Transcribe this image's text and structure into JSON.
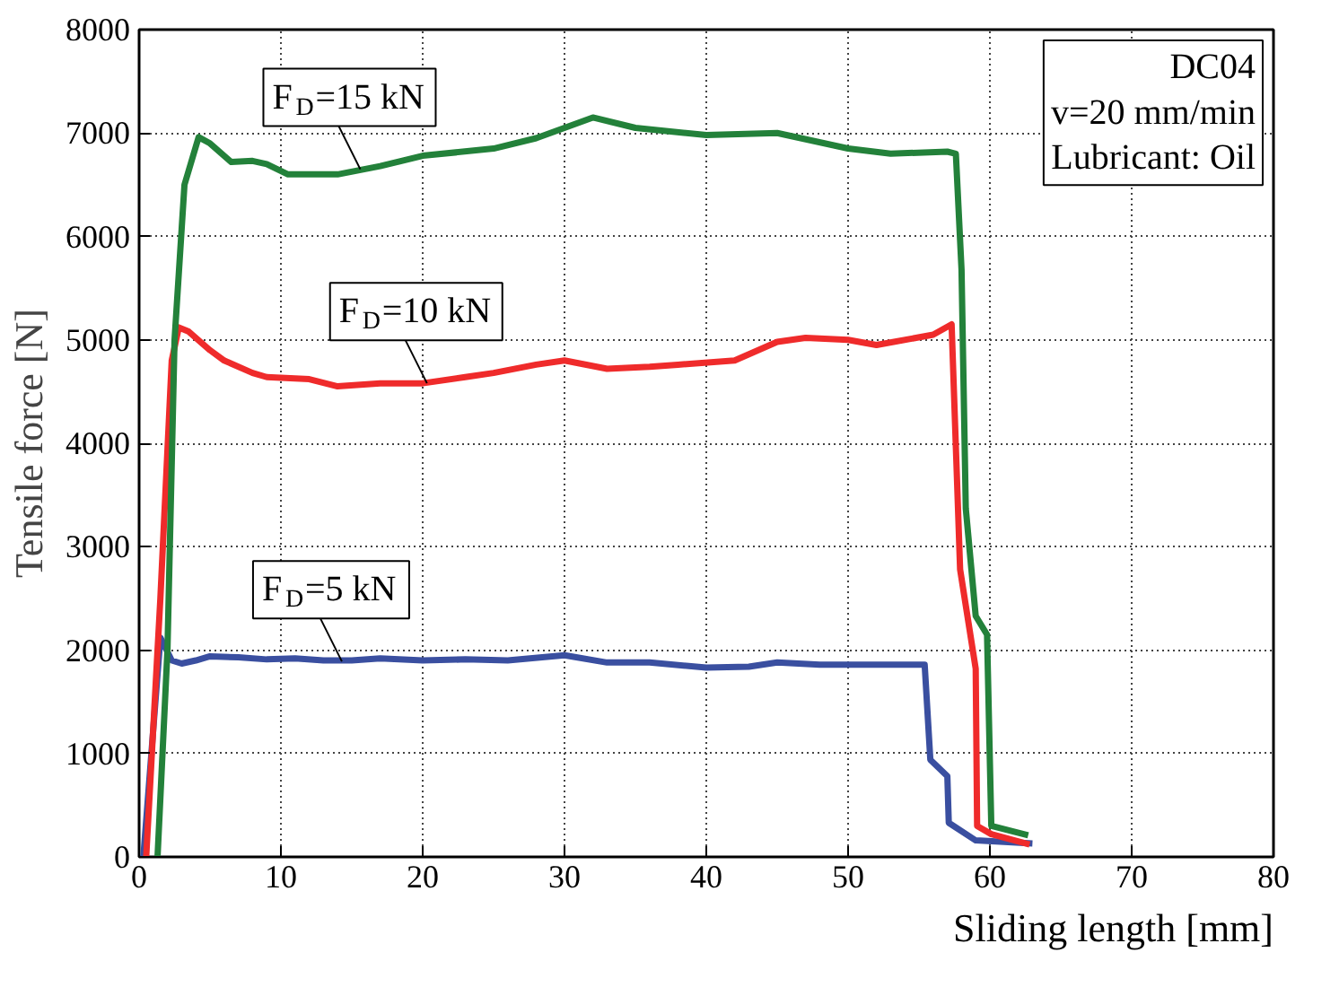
{
  "chart_data": {
    "type": "line",
    "xlabel": "Sliding length [mm]",
    "ylabel": "Tensile force [N]",
    "xlim": [
      0,
      80
    ],
    "ylim": [
      0,
      8000
    ],
    "xticks": [
      0,
      10,
      20,
      30,
      40,
      50,
      60,
      70,
      80
    ],
    "yticks": [
      0,
      1000,
      2000,
      3000,
      4000,
      5000,
      6000,
      7000,
      8000
    ],
    "grid": true,
    "line_style": "solid",
    "series": [
      {
        "color": "#3a4fa0",
        "x": [
          0.3,
          1.5,
          2.3,
          3,
          4,
          5,
          7,
          9,
          11,
          13,
          15,
          17,
          20,
          23,
          26,
          30,
          33,
          36,
          40,
          43,
          45,
          48,
          51,
          53,
          55.4,
          55.8,
          57.0,
          57.1,
          59,
          63
        ],
        "values": [
          0,
          2120,
          1900,
          1870,
          1900,
          1940,
          1930,
          1910,
          1920,
          1900,
          1900,
          1920,
          1900,
          1910,
          1900,
          1950,
          1880,
          1880,
          1830,
          1840,
          1880,
          1860,
          1860,
          1860,
          1860,
          940,
          780,
          330,
          160,
          130
        ]
      },
      {
        "color": "#ef2b2b",
        "x": [
          0.5,
          1.5,
          2.3,
          2.8,
          3.5,
          5,
          6,
          8,
          9,
          12,
          14,
          17,
          20,
          23,
          25,
          28,
          30,
          33,
          36,
          38,
          42,
          45,
          47,
          50,
          52,
          56,
          57.3,
          57.9,
          59.0,
          59.1,
          60.1,
          62.8
        ],
        "values": [
          0,
          2500,
          4800,
          5120,
          5080,
          4900,
          4800,
          4680,
          4640,
          4620,
          4550,
          4580,
          4580,
          4640,
          4680,
          4760,
          4800,
          4720,
          4740,
          4760,
          4800,
          4980,
          5020,
          5000,
          4950,
          5050,
          5150,
          2780,
          1820,
          300,
          220,
          120
        ]
      },
      {
        "color": "#23813a",
        "x": [
          1.3,
          2,
          2.5,
          3.2,
          4.2,
          5,
          6.5,
          8,
          9,
          10.5,
          14,
          17,
          20,
          25,
          28,
          30,
          32,
          35,
          40,
          45,
          50,
          53,
          57,
          57.6,
          58.0,
          58.3,
          59.0,
          59.8,
          60.1,
          62.7
        ],
        "values": [
          0,
          2000,
          5000,
          6500,
          6960,
          6900,
          6720,
          6730,
          6700,
          6600,
          6600,
          6680,
          6780,
          6850,
          6950,
          7050,
          7150,
          7050,
          6980,
          7000,
          6850,
          6800,
          6820,
          6800,
          5680,
          3370,
          2330,
          2150,
          300,
          210
        ]
      }
    ],
    "annotations": [
      {
        "text": "F$_{D}$=15 kN",
        "x": 15.6,
        "y": 6650
      },
      {
        "text": "F$_{D}$=10 kN",
        "x": 20.3,
        "y": 4580
      },
      {
        "text": "F$_{D}$=5 kN",
        "x": 14.3,
        "y": 1890
      },
      "DC04",
      "v=20 mm/min",
      "Lubricant: Oil"
    ]
  }
}
